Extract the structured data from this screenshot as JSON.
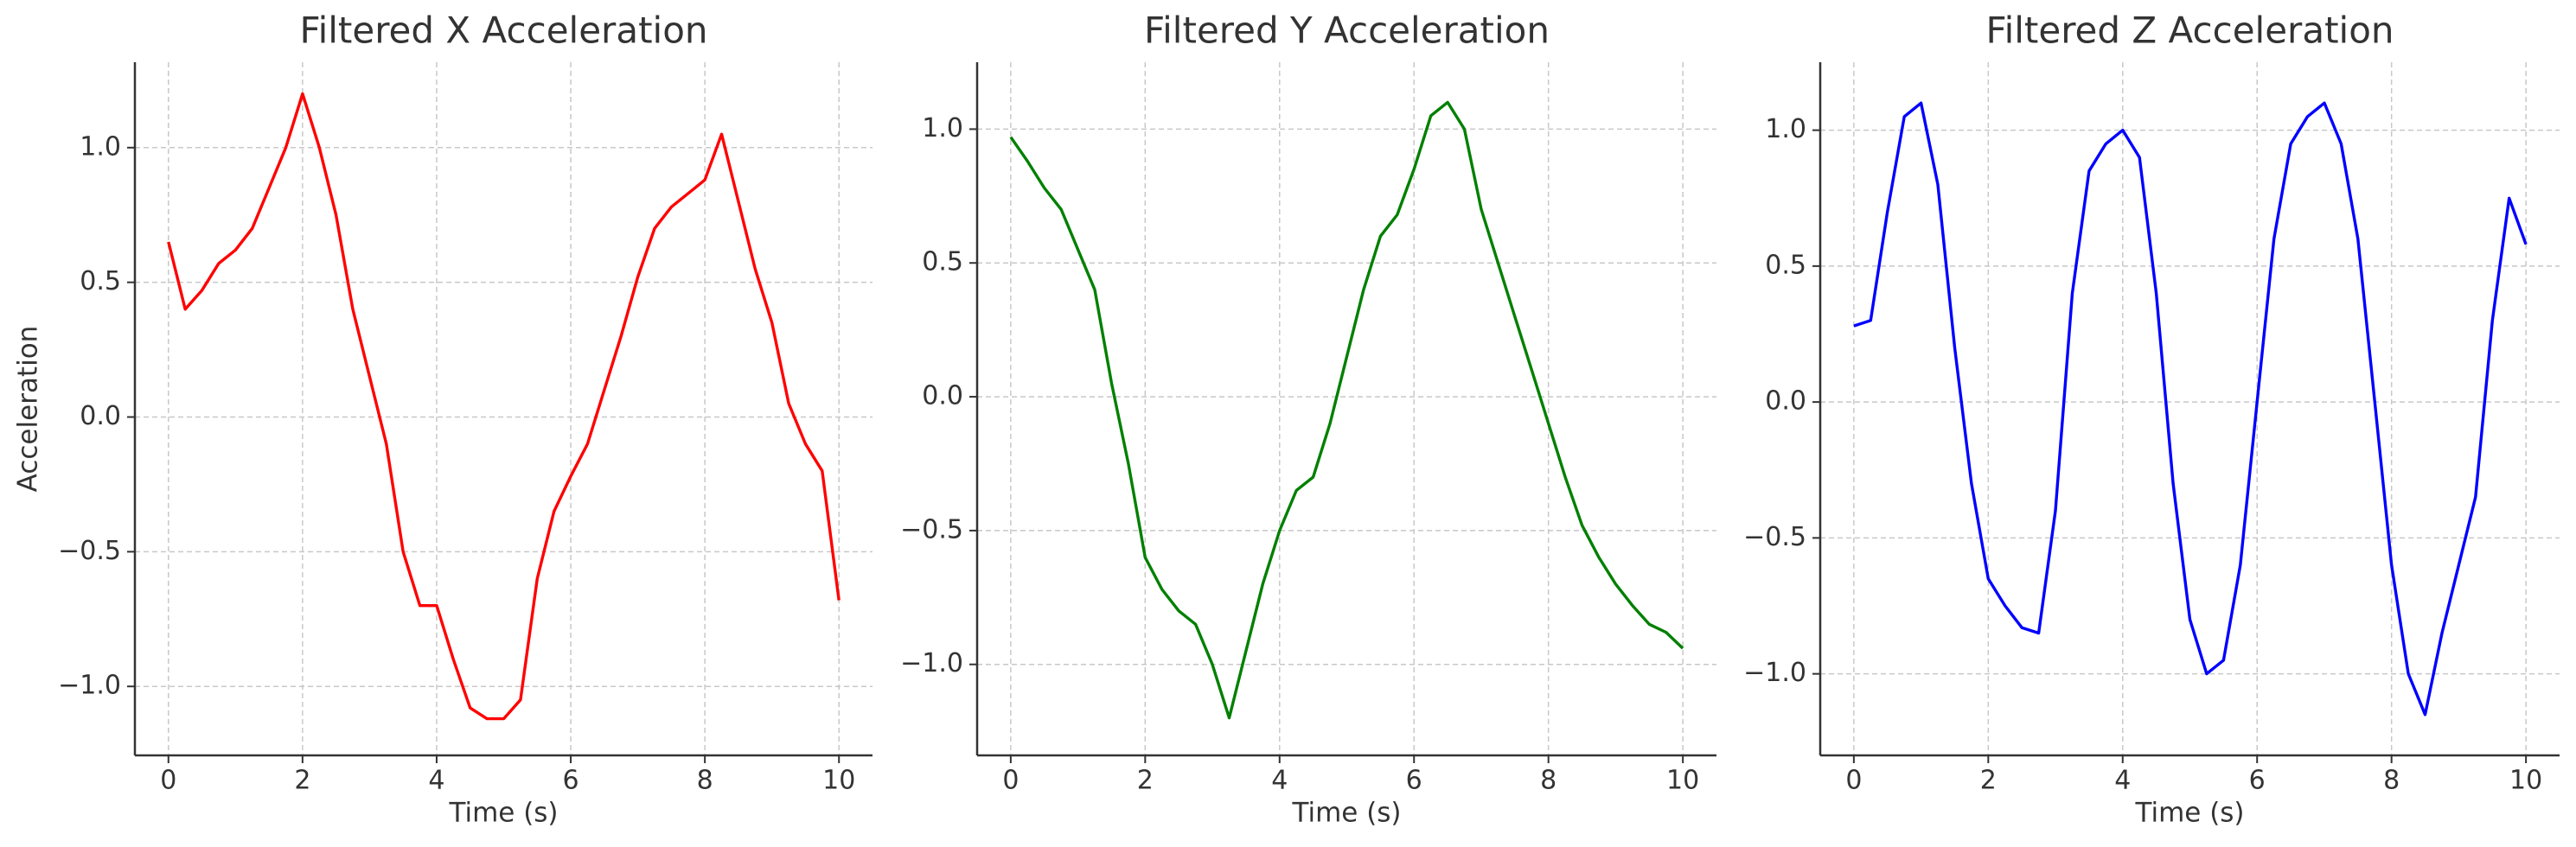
{
  "chart_data": [
    {
      "type": "line",
      "title": "Filtered X Acceleration",
      "x_label": "Time (s)",
      "y_label": "Acceleration",
      "color": "#ff0000",
      "x": [
        0,
        0.25,
        0.5,
        0.75,
        1,
        1.25,
        1.5,
        1.75,
        2,
        2.25,
        2.5,
        2.75,
        3,
        3.25,
        3.5,
        3.75,
        4,
        4.25,
        4.5,
        4.75,
        5,
        5.25,
        5.5,
        5.75,
        6,
        6.25,
        6.5,
        6.75,
        7,
        7.25,
        7.5,
        7.75,
        8,
        8.25,
        8.5,
        8.75,
        9,
        9.25,
        9.5,
        9.75,
        10
      ],
      "values": [
        0.65,
        0.4,
        0.47,
        0.57,
        0.62,
        0.7,
        0.85,
        1.0,
        1.2,
        1.0,
        0.75,
        0.4,
        0.15,
        -0.1,
        -0.5,
        -0.7,
        -0.7,
        -0.9,
        -1.08,
        -1.12,
        -1.12,
        -1.05,
        -0.6,
        -0.35,
        -0.22,
        -0.1,
        0.1,
        0.3,
        0.52,
        0.7,
        0.78,
        0.83,
        0.88,
        1.05,
        0.8,
        0.55,
        0.35,
        0.05,
        -0.1,
        -0.2,
        -0.68
      ],
      "xlim": [
        -0.5,
        10.5
      ],
      "xticks": [
        0,
        2,
        4,
        6,
        8,
        10
      ],
      "ylim": [
        -1.256,
        1.317
      ],
      "yticks": [
        {
          "value": -1,
          "label": "−1.0"
        },
        {
          "value": -0.5,
          "label": "−0.5"
        },
        {
          "value": 0,
          "label": "0.0"
        },
        0.5,
        {
          "value": 1,
          "label": "1.0"
        }
      ],
      "grid": true
    },
    {
      "type": "line",
      "title": "Filtered Y Acceleration",
      "x_label": "Time (s)",
      "color": "#008000",
      "x": [
        0,
        0.25,
        0.5,
        0.75,
        1,
        1.25,
        1.5,
        1.75,
        2,
        2.25,
        2.5,
        2.75,
        3,
        3.25,
        3.5,
        3.75,
        4,
        4.25,
        4.5,
        4.75,
        5,
        5.25,
        5.5,
        5.75,
        6,
        6.25,
        6.5,
        6.75,
        7,
        7.25,
        7.5,
        7.75,
        8,
        8.25,
        8.5,
        8.75,
        9,
        9.25,
        9.5,
        9.75,
        10
      ],
      "values": [
        0.97,
        0.88,
        0.78,
        0.7,
        0.55,
        0.4,
        0.05,
        -0.25,
        -0.6,
        -0.72,
        -0.8,
        -0.85,
        -1.0,
        -1.2,
        -0.95,
        -0.7,
        -0.5,
        -0.35,
        -0.3,
        -0.1,
        0.15,
        0.4,
        0.6,
        0.68,
        0.85,
        1.05,
        1.1,
        1.0,
        0.7,
        0.5,
        0.3,
        0.1,
        -0.1,
        -0.3,
        -0.48,
        -0.6,
        -0.7,
        -0.78,
        -0.85,
        -0.88,
        -0.94
      ],
      "xlim": [
        -0.5,
        10.5
      ],
      "xticks": [
        0,
        2,
        4,
        6,
        8,
        10
      ],
      "ylim": [
        -1.34,
        1.25
      ],
      "yticks": [
        {
          "value": -1,
          "label": "−1.0"
        },
        {
          "value": -0.5,
          "label": "−0.5"
        },
        {
          "value": 0,
          "label": "0.0"
        },
        0.5,
        {
          "value": 1,
          "label": "1.0"
        }
      ],
      "grid": true
    },
    {
      "type": "line",
      "title": "Filtered Z Acceleration",
      "x_label": "Time (s)",
      "color": "#0000ff",
      "x": [
        0,
        0.25,
        0.5,
        0.75,
        1,
        1.25,
        1.5,
        1.75,
        2,
        2.25,
        2.5,
        2.75,
        3,
        3.25,
        3.5,
        3.75,
        4,
        4.25,
        4.5,
        4.75,
        5,
        5.25,
        5.5,
        5.75,
        6,
        6.25,
        6.5,
        6.75,
        7,
        7.25,
        7.5,
        7.75,
        8,
        8.25,
        8.5,
        8.75,
        9,
        9.25,
        9.5,
        9.75,
        10
      ],
      "values": [
        0.28,
        0.3,
        0.7,
        1.05,
        1.1,
        0.8,
        0.2,
        -0.3,
        -0.65,
        -0.75,
        -0.83,
        -0.85,
        -0.4,
        0.4,
        0.85,
        0.95,
        1.0,
        0.9,
        0.4,
        -0.3,
        -0.8,
        -1.0,
        -0.95,
        -0.6,
        0.0,
        0.6,
        0.95,
        1.05,
        1.1,
        0.95,
        0.6,
        0.0,
        -0.6,
        -1.0,
        -1.15,
        -0.85,
        -0.6,
        -0.35,
        0.3,
        0.75,
        0.58
      ],
      "xlim": [
        -0.5,
        10.5
      ],
      "xticks": [
        0,
        2,
        4,
        6,
        8,
        10
      ],
      "ylim": [
        -1.3,
        1.25
      ],
      "yticks": [
        {
          "value": -1,
          "label": "−1.0"
        },
        {
          "value": -0.5,
          "label": "−0.5"
        },
        {
          "value": 0,
          "label": "0.0"
        },
        0.5,
        {
          "value": 1,
          "label": "1.0"
        }
      ],
      "grid": true
    }
  ]
}
